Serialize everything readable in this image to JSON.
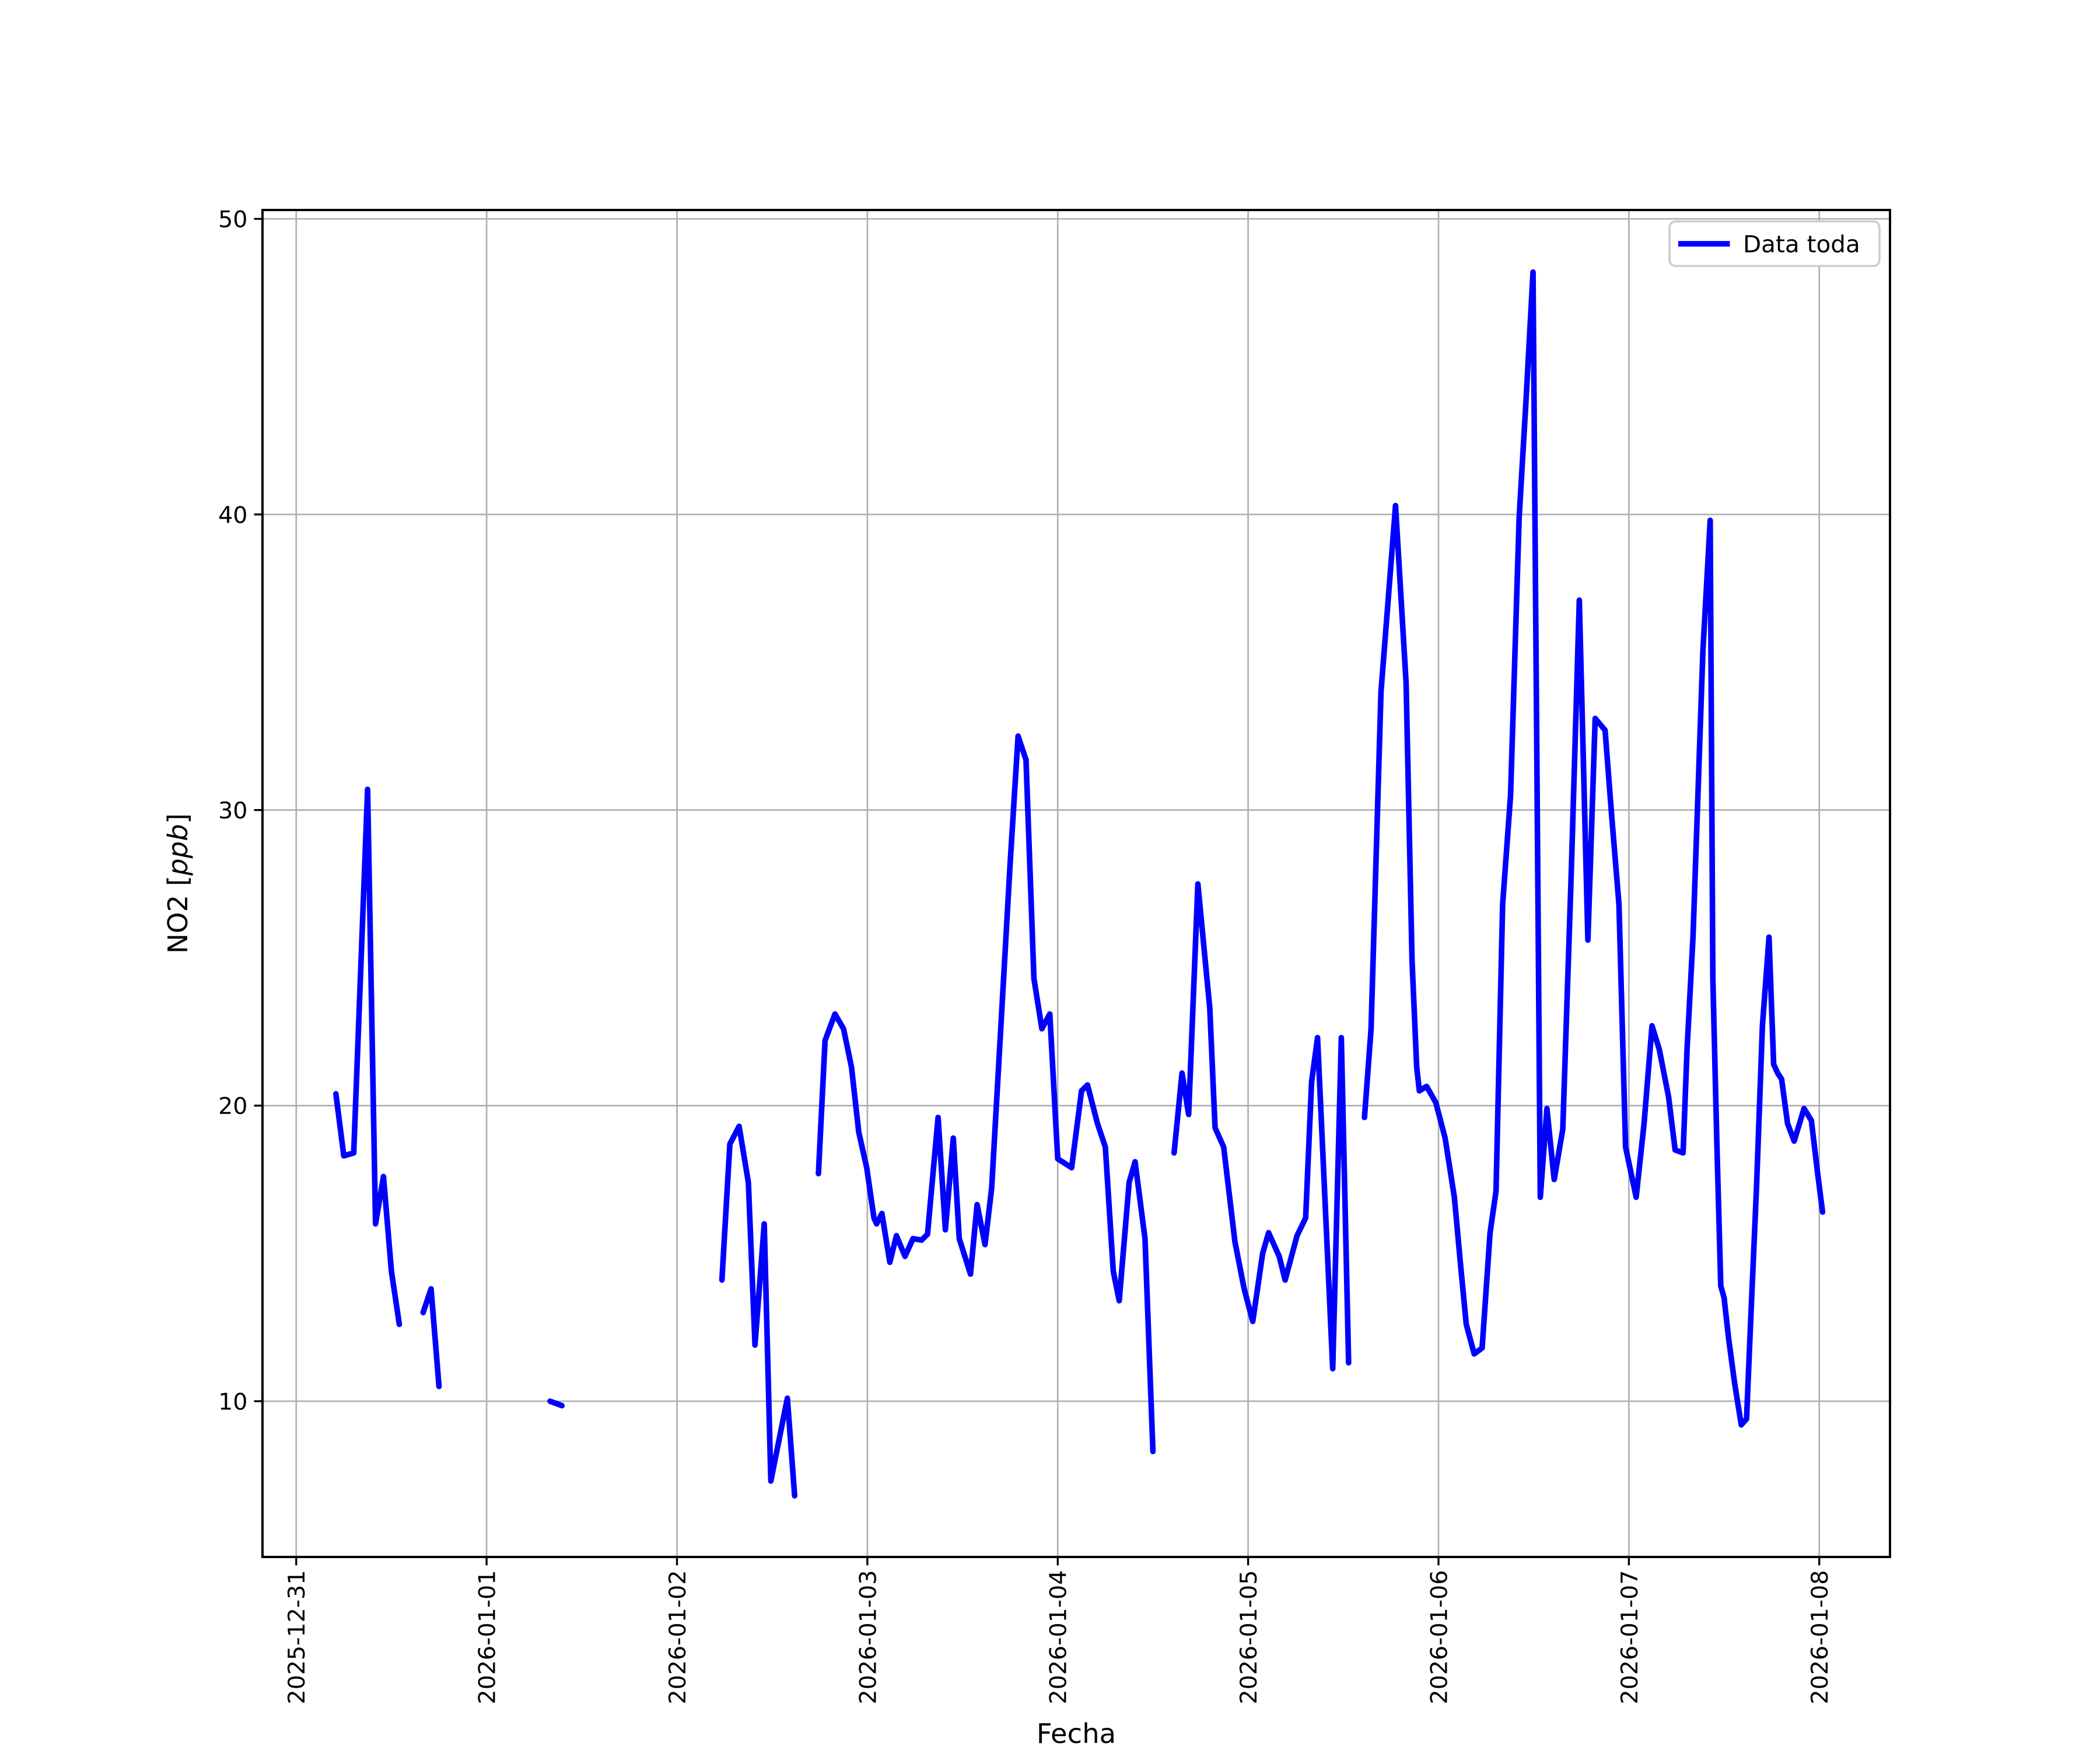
{
  "figure": {
    "background": "#ffffff",
    "plot_background": "#ffffff"
  },
  "chart_data": {
    "type": "line",
    "title": "",
    "xlabel": "Fecha",
    "ylabel": "NO2 [ppb]",
    "ylabel_parts": [
      {
        "text": "NO2 [",
        "italic": false
      },
      {
        "text": "ppb",
        "italic": true
      },
      {
        "text": "]",
        "italic": false
      }
    ],
    "legend": {
      "label": "Data toda",
      "position": "upper right"
    },
    "line": {
      "color": "#0000ff",
      "width": 3.2
    },
    "grid": {
      "show": true,
      "color": "#b0b0b0",
      "width": 0.9
    },
    "axes": {
      "spine_color": "#000000",
      "tick_length": 4.8,
      "x_tick_rotation": 90
    },
    "x_ticks": [
      "2025-12-31",
      "2026-01-01",
      "2026-01-02",
      "2026-01-03",
      "2026-01-04",
      "2026-01-05",
      "2026-01-06",
      "2026-01-07",
      "2026-01-08"
    ],
    "y_ticks": [
      10,
      20,
      30,
      40,
      50
    ],
    "xlim": [
      "2025-12-30T19:45",
      "2026-01-08T08:55"
    ],
    "ylim": [
      4.73,
      50.3
    ],
    "series": [
      {
        "name": "Data toda",
        "color": "#0000ff",
        "segments": [
          [
            [
              "2025-12-31T05:00",
              20.4
            ],
            [
              "2025-12-31T06:00",
              18.3
            ],
            [
              "2025-12-31T07:15",
              18.4
            ],
            [
              "2025-12-31T09:00",
              30.7
            ],
            [
              "2025-12-31T10:00",
              16.0
            ],
            [
              "2025-12-31T11:00",
              17.6
            ],
            [
              "2025-12-31T12:00",
              14.4
            ],
            [
              "2025-12-31T13:00",
              12.6
            ]
          ],
          [
            [
              "2025-12-31T16:00",
              13.0
            ],
            [
              "2025-12-31T17:00",
              13.8
            ],
            [
              "2025-12-31T18:00",
              10.5
            ]
          ],
          [
            [
              "2026-01-01T08:00",
              10.0
            ],
            [
              "2026-01-01T09:30",
              9.85
            ]
          ],
          [
            [
              "2026-01-02T05:40",
              14.1
            ],
            [
              "2026-01-02T06:40",
              18.7
            ],
            [
              "2026-01-02T07:50",
              19.3
            ],
            [
              "2026-01-02T09:00",
              17.4
            ],
            [
              "2026-01-02T09:50",
              11.9
            ],
            [
              "2026-01-02T11:00",
              16.0
            ],
            [
              "2026-01-02T11:50",
              7.3
            ],
            [
              "2026-01-02T13:55",
              10.1
            ],
            [
              "2026-01-02T14:50",
              6.8
            ]
          ],
          [
            [
              "2026-01-02T17:50",
              17.7
            ],
            [
              "2026-01-02T18:40",
              22.2
            ],
            [
              "2026-01-02T19:55",
              23.1
            ],
            [
              "2026-01-02T21:00",
              22.6
            ],
            [
              "2026-01-02T22:00",
              21.3
            ],
            [
              "2026-01-02T22:55",
              19.1
            ],
            [
              "2026-01-02T23:55",
              17.9
            ],
            [
              "2026-01-03T00:50",
              16.2
            ],
            [
              "2026-01-03T01:10",
              16.0
            ],
            [
              "2026-01-03T01:50",
              16.35
            ],
            [
              "2026-01-03T02:50",
              14.7
            ],
            [
              "2026-01-03T03:40",
              15.6
            ],
            [
              "2026-01-03T04:45",
              14.9
            ],
            [
              "2026-01-03T05:45",
              15.5
            ],
            [
              "2026-01-03T06:50",
              15.45
            ],
            [
              "2026-01-03T07:35",
              15.65
            ],
            [
              "2026-01-03T08:55",
              19.6
            ],
            [
              "2026-01-03T09:50",
              15.8
            ],
            [
              "2026-01-03T10:50",
              18.9
            ],
            [
              "2026-01-03T11:35",
              15.5
            ],
            [
              "2026-01-03T13:00",
              14.3
            ],
            [
              "2026-01-03T13:50",
              16.65
            ],
            [
              "2026-01-03T14:50",
              15.3
            ],
            [
              "2026-01-03T15:40",
              17.2
            ],
            [
              "2026-01-03T16:40",
              21.9
            ],
            [
              "2026-01-03T18:00",
              28.2
            ],
            [
              "2026-01-03T19:00",
              32.5
            ],
            [
              "2026-01-03T20:00",
              31.7
            ],
            [
              "2026-01-03T21:00",
              24.3
            ],
            [
              "2026-01-03T22:00",
              22.6
            ],
            [
              "2026-01-03T23:00",
              23.1
            ],
            [
              "2026-01-04T00:00",
              18.2
            ],
            [
              "2026-01-04T01:45",
              17.9
            ],
            [
              "2026-01-04T03:00",
              20.5
            ],
            [
              "2026-01-04T03:45",
              20.7
            ],
            [
              "2026-01-04T05:00",
              19.4
            ],
            [
              "2026-01-04T06:00",
              18.6
            ],
            [
              "2026-01-04T07:00",
              14.4
            ],
            [
              "2026-01-04T07:45",
              13.4
            ],
            [
              "2026-01-04T09:00",
              17.4
            ],
            [
              "2026-01-04T09:45",
              18.1
            ],
            [
              "2026-01-04T11:00",
              15.5
            ],
            [
              "2026-01-04T12:00",
              8.3
            ]
          ],
          [
            [
              "2026-01-04T14:40",
              18.4
            ],
            [
              "2026-01-04T15:40",
              21.1
            ],
            [
              "2026-01-04T16:30",
              19.7
            ],
            [
              "2026-01-04T17:40",
              27.5
            ],
            [
              "2026-01-04T19:10",
              23.3
            ],
            [
              "2026-01-04T19:50",
              19.25
            ],
            [
              "2026-01-04T20:55",
              18.6
            ],
            [
              "2026-01-04T22:20",
              15.4
            ],
            [
              "2026-01-04T23:30",
              13.8
            ],
            [
              "2026-01-05T00:35",
              12.7
            ],
            [
              "2026-01-05T01:50",
              15.0
            ],
            [
              "2026-01-05T02:35",
              15.7
            ],
            [
              "2026-01-05T03:55",
              14.9
            ],
            [
              "2026-01-05T04:40",
              14.1
            ],
            [
              "2026-01-05T06:10",
              15.6
            ],
            [
              "2026-01-05T07:15",
              16.2
            ],
            [
              "2026-01-05T08:00",
              20.8
            ],
            [
              "2026-01-05T08:45",
              22.3
            ],
            [
              "2026-01-05T10:40",
              11.1
            ],
            [
              "2026-01-05T11:45",
              22.3
            ],
            [
              "2026-01-05T12:40",
              11.3
            ]
          ],
          [
            [
              "2026-01-05T14:40",
              19.6
            ],
            [
              "2026-01-05T15:30",
              22.6
            ],
            [
              "2026-01-05T16:45",
              34.0
            ],
            [
              "2026-01-05T18:35",
              40.3
            ],
            [
              "2026-01-05T19:55",
              34.3
            ],
            [
              "2026-01-05T20:40",
              24.9
            ],
            [
              "2026-01-05T21:15",
              21.3
            ],
            [
              "2026-01-05T21:35",
              20.5
            ],
            [
              "2026-01-05T22:30",
              20.65
            ],
            [
              "2026-01-05T23:40",
              20.1
            ],
            [
              "2026-01-06T00:50",
              18.9
            ],
            [
              "2026-01-06T02:00",
              16.9
            ],
            [
              "2026-01-06T02:45",
              14.7
            ],
            [
              "2026-01-06T03:30",
              12.6
            ],
            [
              "2026-01-06T04:30",
              11.6
            ],
            [
              "2026-01-06T05:30",
              11.8
            ],
            [
              "2026-01-06T06:30",
              15.7
            ],
            [
              "2026-01-06T07:15",
              17.1
            ],
            [
              "2026-01-06T08:05",
              26.8
            ],
            [
              "2026-01-06T09:05",
              30.5
            ],
            [
              "2026-01-06T10:10",
              39.9
            ],
            [
              "2026-01-06T11:00",
              43.7
            ],
            [
              "2026-01-06T11:55",
              48.2
            ],
            [
              "2026-01-06T12:50",
              16.9
            ],
            [
              "2026-01-06T13:40",
              19.9
            ],
            [
              "2026-01-06T14:35",
              17.5
            ],
            [
              "2026-01-06T15:40",
              19.2
            ],
            [
              "2026-01-06T16:45",
              28.0
            ],
            [
              "2026-01-06T17:45",
              37.1
            ],
            [
              "2026-01-06T18:50",
              25.6
            ],
            [
              "2026-01-06T19:45",
              33.1
            ],
            [
              "2026-01-06T21:00",
              32.7
            ],
            [
              "2026-01-06T21:50",
              29.8
            ],
            [
              "2026-01-06T22:45",
              26.8
            ],
            [
              "2026-01-06T23:35",
              18.6
            ],
            [
              "2026-01-07T00:55",
              16.9
            ],
            [
              "2026-01-07T01:55",
              19.4
            ],
            [
              "2026-01-07T02:55",
              22.7
            ],
            [
              "2026-01-07T03:50",
              21.9
            ],
            [
              "2026-01-07T05:00",
              20.3
            ],
            [
              "2026-01-07T05:50",
              18.5
            ],
            [
              "2026-01-07T06:50",
              18.4
            ],
            [
              "2026-01-07T07:20",
              21.9
            ],
            [
              "2026-01-07T08:05",
              25.7
            ],
            [
              "2026-01-07T09:20",
              35.4
            ],
            [
              "2026-01-07T10:15",
              39.8
            ],
            [
              "2026-01-07T10:35",
              24.3
            ],
            [
              "2026-01-07T11:05",
              18.8
            ],
            [
              "2026-01-07T11:35",
              13.9
            ],
            [
              "2026-01-07T12:00",
              13.5
            ],
            [
              "2026-01-07T12:35",
              12.1
            ],
            [
              "2026-01-07T13:20",
              10.6
            ],
            [
              "2026-01-07T14:10",
              9.2
            ],
            [
              "2026-01-07T14:50",
              9.4
            ],
            [
              "2026-01-07T15:20",
              12.6
            ],
            [
              "2026-01-07T16:05",
              17.2
            ],
            [
              "2026-01-07T16:50",
              22.7
            ],
            [
              "2026-01-07T17:40",
              25.7
            ],
            [
              "2026-01-07T18:15",
              21.4
            ],
            [
              "2026-01-07T18:45",
              21.1
            ],
            [
              "2026-01-07T19:15",
              20.9
            ],
            [
              "2026-01-07T20:00",
              19.4
            ],
            [
              "2026-01-07T20:50",
              18.8
            ],
            [
              "2026-01-07T22:05",
              19.9
            ],
            [
              "2026-01-07T23:00",
              19.5
            ],
            [
              "2026-01-07T23:45",
              17.8
            ],
            [
              "2026-01-08T00:25",
              16.4
            ]
          ]
        ]
      }
    ]
  }
}
